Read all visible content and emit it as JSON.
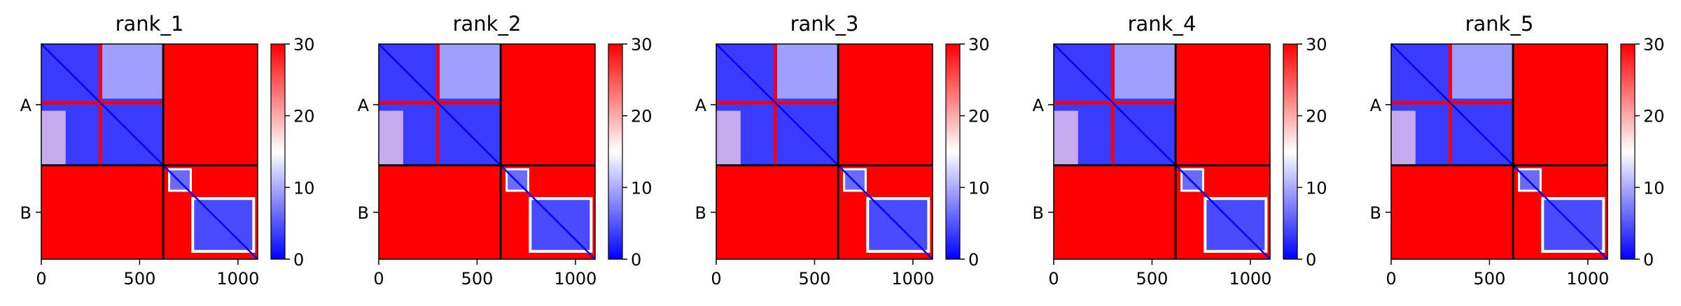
{
  "figure": {
    "colormap": {
      "low": "#0000ff",
      "mid": "#ffffff",
      "high": "#ff0000"
    },
    "colorbar": {
      "vmin": 0,
      "vmax": 30,
      "ticks": [
        0,
        10,
        20,
        30
      ]
    }
  },
  "chart_data": [
    {
      "type": "heatmap",
      "title": "rank_1",
      "chains": [
        "A",
        "B"
      ],
      "chain_lengths": [
        620,
        480
      ],
      "xlim": [
        0,
        1100
      ],
      "xticks": [
        0,
        500,
        1000
      ],
      "yticks": [
        "A",
        "B"
      ],
      "vmin": 0,
      "vmax": 30,
      "grid": false
    },
    {
      "type": "heatmap",
      "title": "rank_2",
      "chains": [
        "A",
        "B"
      ],
      "chain_lengths": [
        620,
        480
      ],
      "xlim": [
        0,
        1100
      ],
      "xticks": [
        0,
        500,
        1000
      ],
      "yticks": [
        "A",
        "B"
      ],
      "vmin": 0,
      "vmax": 30,
      "grid": false
    },
    {
      "type": "heatmap",
      "title": "rank_3",
      "chains": [
        "A",
        "B"
      ],
      "chain_lengths": [
        620,
        480
      ],
      "xlim": [
        0,
        1100
      ],
      "xticks": [
        0,
        500,
        1000
      ],
      "yticks": [
        "A",
        "B"
      ],
      "vmin": 0,
      "vmax": 30,
      "grid": false
    },
    {
      "type": "heatmap",
      "title": "rank_4",
      "chains": [
        "A",
        "B"
      ],
      "chain_lengths": [
        620,
        480
      ],
      "xlim": [
        0,
        1100
      ],
      "xticks": [
        0,
        500,
        1000
      ],
      "yticks": [
        "A",
        "B"
      ],
      "vmin": 0,
      "vmax": 30,
      "grid": false
    },
    {
      "type": "heatmap",
      "title": "rank_5",
      "chains": [
        "A",
        "B"
      ],
      "chain_lengths": [
        620,
        480
      ],
      "xlim": [
        0,
        1100
      ],
      "xticks": [
        0,
        500,
        1000
      ],
      "yticks": [
        "A",
        "B"
      ],
      "vmin": 0,
      "vmax": 30,
      "grid": false
    }
  ]
}
